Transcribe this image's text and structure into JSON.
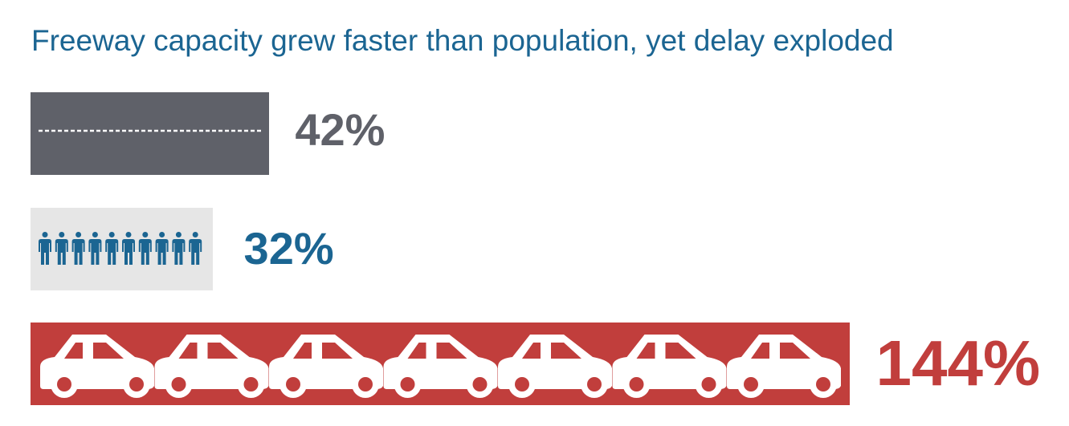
{
  "chart_data": {
    "type": "bar",
    "orientation": "horizontal",
    "title": "Freeway capacity grew faster than population, yet delay exploded",
    "values": [
      42,
      32,
      144
    ],
    "data_labels": [
      "42%",
      "32%",
      "144%"
    ],
    "icons": [
      "road-icon",
      "person-icon",
      "car-icon"
    ],
    "colors": [
      "#5f6169",
      "#e6e6e6",
      "#c13e3c"
    ],
    "label_colors": [
      "#5f6169",
      "#1b6592",
      "#c13e3c"
    ],
    "icon_colors": [
      "#ffffff",
      "#1b6592",
      "#ffffff"
    ],
    "icon_counts": [
      1,
      10,
      7
    ]
  }
}
